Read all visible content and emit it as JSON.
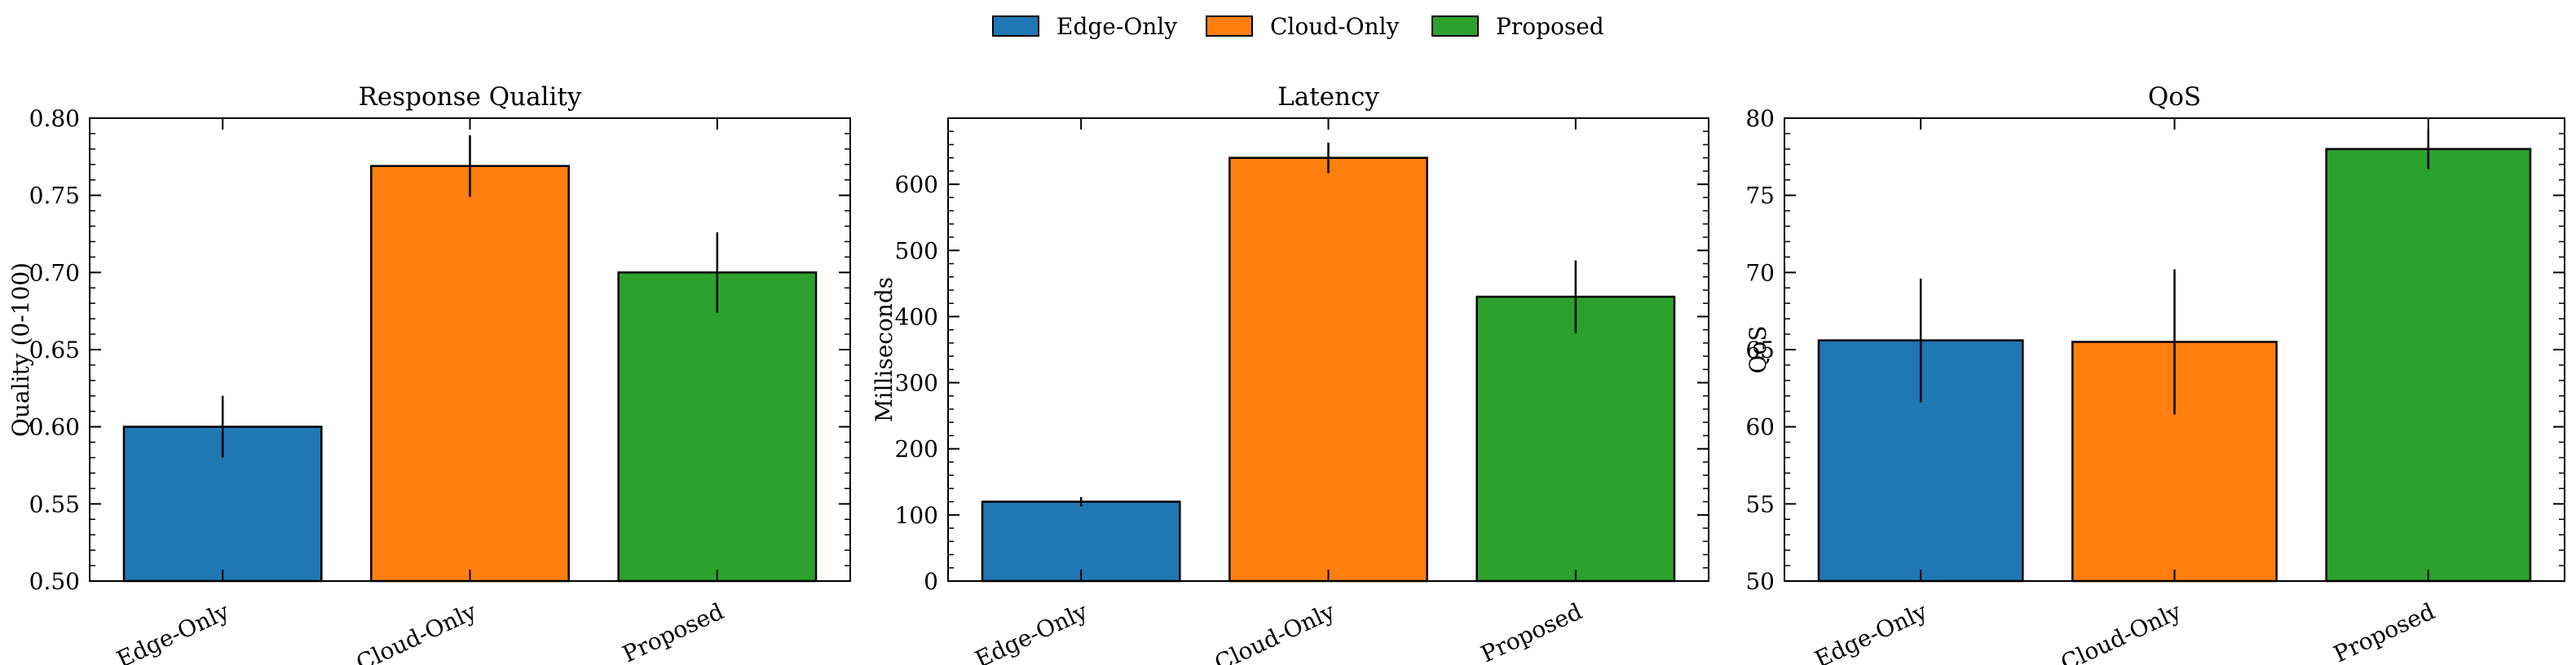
{
  "legend": {
    "placement": "top-center",
    "entries": [
      {
        "label": "Edge-Only",
        "color": "#1f77b4"
      },
      {
        "label": "Cloud-Only",
        "color": "#ff7f0e"
      },
      {
        "label": "Proposed",
        "color": "#2ca02c"
      }
    ]
  },
  "chart_data": [
    {
      "type": "bar",
      "title": "Response Quality",
      "xlabel": "",
      "ylabel": "Quality (0-100)",
      "categories": [
        "Edge-Only",
        "Cloud-Only",
        "Proposed"
      ],
      "values": [
        0.6,
        0.769,
        0.7
      ],
      "errors": [
        0.02,
        0.02,
        0.026
      ],
      "colors": [
        "#1f77b4",
        "#ff7f0e",
        "#2ca02c"
      ],
      "ylim": [
        0.5,
        0.8
      ],
      "yticks": [
        0.5,
        0.55,
        0.6,
        0.65,
        0.7,
        0.75,
        0.8
      ],
      "ytick_labels": [
        "0.50",
        "0.55",
        "0.60",
        "0.65",
        "0.70",
        "0.75",
        "0.80"
      ],
      "grid": false
    },
    {
      "type": "bar",
      "title": "Latency",
      "xlabel": "",
      "ylabel": "Milliseconds",
      "categories": [
        "Edge-Only",
        "Cloud-Only",
        "Proposed"
      ],
      "values": [
        120,
        640,
        430
      ],
      "errors": [
        7,
        23,
        55
      ],
      "colors": [
        "#1f77b4",
        "#ff7f0e",
        "#2ca02c"
      ],
      "ylim": [
        0,
        700
      ],
      "yticks": [
        0,
        100,
        200,
        300,
        400,
        500,
        600
      ],
      "ytick_labels": [
        "0",
        "100",
        "200",
        "300",
        "400",
        "500",
        "600"
      ],
      "grid": false
    },
    {
      "type": "bar",
      "title": "QoS",
      "xlabel": "",
      "ylabel": "QoS",
      "categories": [
        "Edge-Only",
        "Cloud-Only",
        "Proposed"
      ],
      "values": [
        65.6,
        65.5,
        78.0
      ],
      "errors": [
        4.0,
        4.7,
        1.3
      ],
      "colors": [
        "#1f77b4",
        "#ff7f0e",
        "#2ca02c"
      ],
      "ylim": [
        50,
        80
      ],
      "yticks": [
        50,
        55,
        60,
        65,
        70,
        75,
        80
      ],
      "ytick_labels": [
        "50",
        "55",
        "60",
        "65",
        "70",
        "75",
        "80"
      ],
      "grid": false
    }
  ]
}
